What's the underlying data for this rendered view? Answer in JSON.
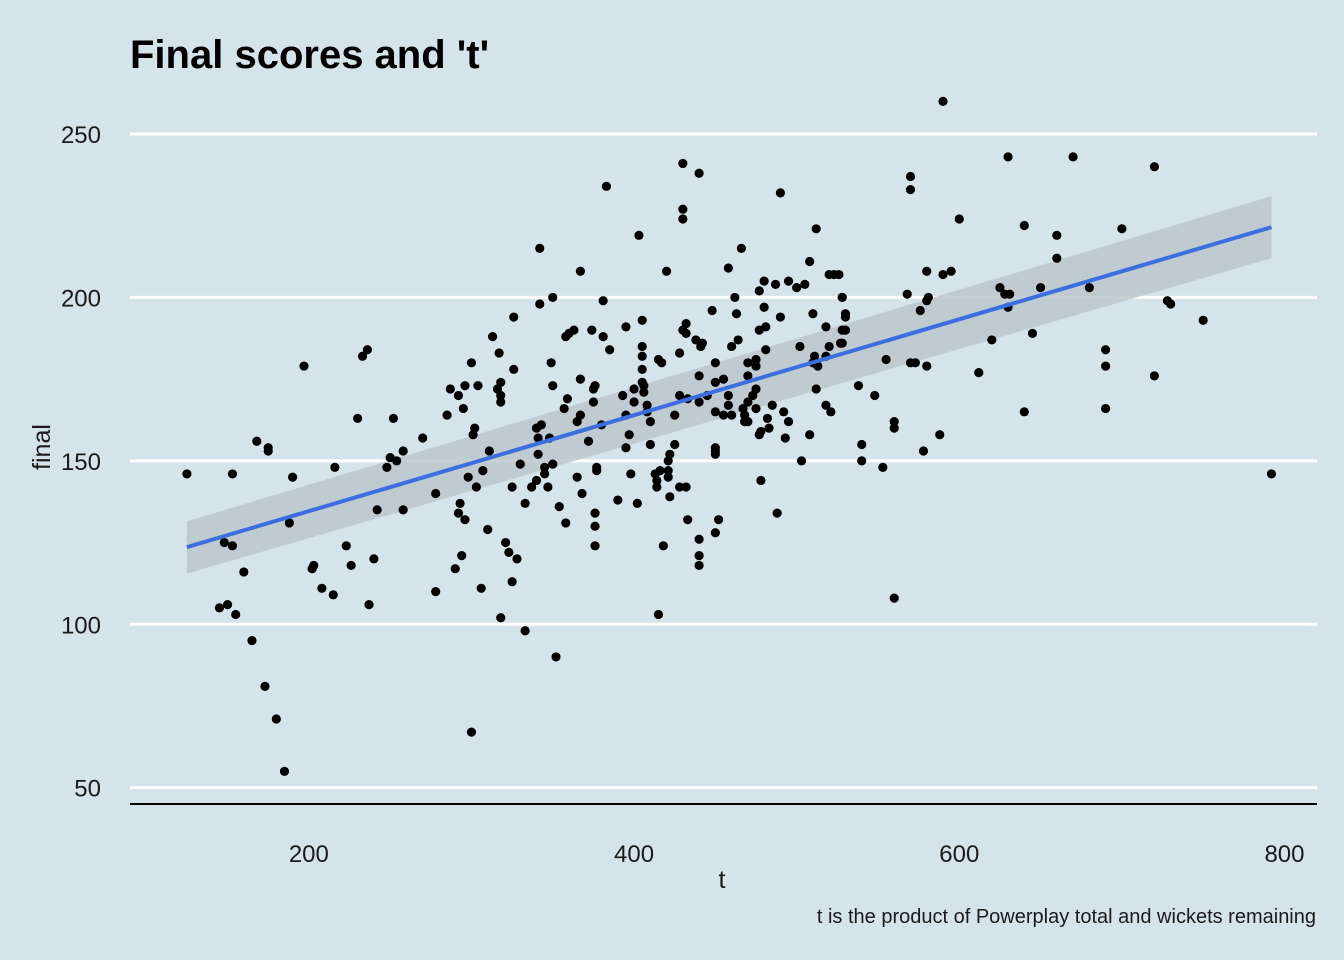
{
  "chart_data": {
    "type": "scatter",
    "title": "Final scores and 't'",
    "xlabel": "t",
    "ylabel": "final",
    "caption": "t is the product of Powerplay total and wickets remaining",
    "xlim": [
      90,
      820
    ],
    "ylim": [
      45,
      265
    ],
    "xticks": [
      200,
      400,
      600,
      800
    ],
    "xtick_labels": [
      "200",
      "400",
      "600",
      "800"
    ],
    "yticks": [
      50,
      100,
      150,
      200,
      250
    ],
    "ytick_labels": [
      "50",
      "100",
      "150",
      "200",
      "250"
    ],
    "grid": "horizontal major lines only",
    "trend": {
      "method": "linear fit with confidence band",
      "x": [
        125,
        792
      ],
      "y": [
        123.6,
        221.5
      ],
      "band_lower": [
        115.5,
        212
      ],
      "band_upper": [
        131.5,
        231
      ],
      "line_color": "#3b6fe0",
      "band_color": "#bcc7cc"
    },
    "point_color": "#000000",
    "points": [
      [
        125,
        146
      ],
      [
        145,
        105
      ],
      [
        148,
        125
      ],
      [
        150,
        106
      ],
      [
        153,
        146
      ],
      [
        153,
        124
      ],
      [
        155,
        103
      ],
      [
        160,
        116
      ],
      [
        165,
        95
      ],
      [
        168,
        156
      ],
      [
        173,
        81
      ],
      [
        175,
        153
      ],
      [
        175,
        154
      ],
      [
        180,
        71
      ],
      [
        185,
        55
      ],
      [
        188,
        131
      ],
      [
        190,
        145
      ],
      [
        197,
        179
      ],
      [
        202,
        117
      ],
      [
        203,
        118
      ],
      [
        208,
        111
      ],
      [
        215,
        109
      ],
      [
        216,
        148
      ],
      [
        223,
        124
      ],
      [
        226,
        118
      ],
      [
        230,
        163
      ],
      [
        233,
        182
      ],
      [
        236,
        184
      ],
      [
        237,
        106
      ],
      [
        240,
        120
      ],
      [
        242,
        135
      ],
      [
        248,
        148
      ],
      [
        250,
        151
      ],
      [
        252,
        163
      ],
      [
        254,
        150
      ],
      [
        258,
        153
      ],
      [
        258,
        135
      ],
      [
        270,
        157
      ],
      [
        278,
        110
      ],
      [
        278,
        140
      ],
      [
        285,
        164
      ],
      [
        287,
        172
      ],
      [
        290,
        117
      ],
      [
        292,
        134
      ],
      [
        292,
        170
      ],
      [
        293,
        137
      ],
      [
        294,
        121
      ],
      [
        295,
        166
      ],
      [
        296,
        173
      ],
      [
        296,
        132
      ],
      [
        298,
        145
      ],
      [
        300,
        180
      ],
      [
        300,
        67
      ],
      [
        301,
        158
      ],
      [
        302,
        160
      ],
      [
        303,
        142
      ],
      [
        304,
        173
      ],
      [
        306,
        111
      ],
      [
        307,
        147
      ],
      [
        310,
        129
      ],
      [
        311,
        153
      ],
      [
        313,
        188
      ],
      [
        316,
        172
      ],
      [
        317,
        183
      ],
      [
        318,
        102
      ],
      [
        318,
        170
      ],
      [
        318,
        174
      ],
      [
        318,
        168
      ],
      [
        321,
        125
      ],
      [
        323,
        122
      ],
      [
        325,
        113
      ],
      [
        325,
        142
      ],
      [
        326,
        194
      ],
      [
        326,
        178
      ],
      [
        328,
        120
      ],
      [
        330,
        149
      ],
      [
        333,
        98
      ],
      [
        333,
        137
      ],
      [
        337,
        142
      ],
      [
        340,
        144
      ],
      [
        340,
        160
      ],
      [
        341,
        157
      ],
      [
        341,
        152
      ],
      [
        342,
        198
      ],
      [
        342,
        215
      ],
      [
        343,
        161
      ],
      [
        345,
        146
      ],
      [
        345,
        148
      ],
      [
        347,
        142
      ],
      [
        348,
        157
      ],
      [
        349,
        180
      ],
      [
        350,
        173
      ],
      [
        350,
        149
      ],
      [
        350,
        200
      ],
      [
        352,
        90
      ],
      [
        354,
        136
      ],
      [
        357,
        166
      ],
      [
        358,
        188
      ],
      [
        358,
        131
      ],
      [
        359,
        169
      ],
      [
        360,
        189
      ],
      [
        363,
        190
      ],
      [
        365,
        162
      ],
      [
        365,
        145
      ],
      [
        367,
        175
      ],
      [
        367,
        208
      ],
      [
        367,
        164
      ],
      [
        368,
        140
      ],
      [
        372,
        156
      ],
      [
        374,
        190
      ],
      [
        375,
        172
      ],
      [
        375,
        168
      ],
      [
        376,
        173
      ],
      [
        376,
        124
      ],
      [
        376,
        134
      ],
      [
        376,
        130
      ],
      [
        377,
        148
      ],
      [
        377,
        147
      ],
      [
        380,
        161
      ],
      [
        381,
        188
      ],
      [
        381,
        199
      ],
      [
        383,
        234
      ],
      [
        385,
        184
      ],
      [
        390,
        138
      ],
      [
        393,
        170
      ],
      [
        395,
        164
      ],
      [
        395,
        191
      ],
      [
        395,
        154
      ],
      [
        397,
        158
      ],
      [
        398,
        146
      ],
      [
        400,
        168
      ],
      [
        400,
        172
      ],
      [
        402,
        137
      ],
      [
        403,
        219
      ],
      [
        405,
        185
      ],
      [
        405,
        193
      ],
      [
        405,
        178
      ],
      [
        405,
        174
      ],
      [
        405,
        182
      ],
      [
        406,
        173
      ],
      [
        406,
        171
      ],
      [
        408,
        165
      ],
      [
        408,
        167
      ],
      [
        410,
        162
      ],
      [
        410,
        155
      ],
      [
        413,
        146
      ],
      [
        414,
        142
      ],
      [
        414,
        144
      ],
      [
        415,
        181
      ],
      [
        415,
        103
      ],
      [
        416,
        147
      ],
      [
        417,
        180
      ],
      [
        418,
        124
      ],
      [
        420,
        208
      ],
      [
        421,
        147
      ],
      [
        421,
        145
      ],
      [
        421,
        150
      ],
      [
        422,
        139
      ],
      [
        422,
        152
      ],
      [
        425,
        155
      ],
      [
        425,
        164
      ],
      [
        428,
        142
      ],
      [
        428,
        170
      ],
      [
        428,
        183
      ],
      [
        430,
        241
      ],
      [
        430,
        224
      ],
      [
        430,
        227
      ],
      [
        430,
        190
      ],
      [
        432,
        189
      ],
      [
        432,
        192
      ],
      [
        432,
        142
      ],
      [
        433,
        169
      ],
      [
        433,
        132
      ],
      [
        438,
        187
      ],
      [
        440,
        176
      ],
      [
        440,
        168
      ],
      [
        440,
        126
      ],
      [
        440,
        238
      ],
      [
        440,
        121
      ],
      [
        440,
        118
      ],
      [
        441,
        185
      ],
      [
        442,
        186
      ],
      [
        445,
        170
      ],
      [
        448,
        196
      ],
      [
        450,
        174
      ],
      [
        450,
        152
      ],
      [
        450,
        153
      ],
      [
        450,
        154
      ],
      [
        450,
        165
      ],
      [
        450,
        128
      ],
      [
        450,
        180
      ],
      [
        452,
        132
      ],
      [
        455,
        164
      ],
      [
        455,
        175
      ],
      [
        458,
        209
      ],
      [
        458,
        167
      ],
      [
        458,
        170
      ],
      [
        460,
        185
      ],
      [
        460,
        164
      ],
      [
        462,
        200
      ],
      [
        463,
        195
      ],
      [
        464,
        187
      ],
      [
        466,
        215
      ],
      [
        467,
        166
      ],
      [
        468,
        162
      ],
      [
        468,
        164
      ],
      [
        470,
        180
      ],
      [
        470,
        176
      ],
      [
        470,
        168
      ],
      [
        470,
        162
      ],
      [
        473,
        170
      ],
      [
        475,
        181
      ],
      [
        475,
        166
      ],
      [
        475,
        179
      ],
      [
        475,
        172
      ],
      [
        477,
        190
      ],
      [
        477,
        202
      ],
      [
        477,
        158
      ],
      [
        478,
        144
      ],
      [
        478,
        159
      ],
      [
        480,
        205
      ],
      [
        480,
        197
      ],
      [
        481,
        191
      ],
      [
        481,
        184
      ],
      [
        482,
        163
      ],
      [
        483,
        160
      ],
      [
        485,
        167
      ],
      [
        487,
        204
      ],
      [
        488,
        134
      ],
      [
        490,
        232
      ],
      [
        490,
        194
      ],
      [
        492,
        165
      ],
      [
        493,
        157
      ],
      [
        495,
        162
      ],
      [
        495,
        205
      ],
      [
        500,
        203
      ],
      [
        502,
        185
      ],
      [
        503,
        150
      ],
      [
        505,
        204
      ],
      [
        508,
        158
      ],
      [
        508,
        211
      ],
      [
        510,
        180
      ],
      [
        510,
        195
      ],
      [
        511,
        182
      ],
      [
        512,
        172
      ],
      [
        512,
        221
      ],
      [
        513,
        179
      ],
      [
        518,
        182
      ],
      [
        518,
        167
      ],
      [
        518,
        191
      ],
      [
        520,
        185
      ],
      [
        520,
        207
      ],
      [
        521,
        165
      ],
      [
        523,
        207
      ],
      [
        526,
        207
      ],
      [
        527,
        186
      ],
      [
        528,
        200
      ],
      [
        528,
        186
      ],
      [
        528,
        200
      ],
      [
        528,
        190
      ],
      [
        530,
        195
      ],
      [
        530,
        190
      ],
      [
        530,
        194
      ],
      [
        538,
        173
      ],
      [
        540,
        155
      ],
      [
        540,
        150
      ],
      [
        548,
        170
      ],
      [
        553,
        148
      ],
      [
        555,
        181
      ],
      [
        560,
        108
      ],
      [
        560,
        162
      ],
      [
        560,
        160
      ],
      [
        568,
        201
      ],
      [
        570,
        237
      ],
      [
        570,
        233
      ],
      [
        570,
        180
      ],
      [
        573,
        180
      ],
      [
        576,
        196
      ],
      [
        578,
        153
      ],
      [
        580,
        179
      ],
      [
        580,
        199
      ],
      [
        580,
        208
      ],
      [
        581,
        200
      ],
      [
        588,
        158
      ],
      [
        590,
        260
      ],
      [
        590,
        207
      ],
      [
        595,
        208
      ],
      [
        600,
        224
      ],
      [
        612,
        177
      ],
      [
        620,
        187
      ],
      [
        625,
        203
      ],
      [
        628,
        201
      ],
      [
        630,
        197
      ],
      [
        630,
        243
      ],
      [
        631,
        201
      ],
      [
        640,
        222
      ],
      [
        640,
        165
      ],
      [
        645,
        189
      ],
      [
        650,
        203
      ],
      [
        660,
        219
      ],
      [
        660,
        212
      ],
      [
        670,
        243
      ],
      [
        680,
        203
      ],
      [
        690,
        184
      ],
      [
        690,
        179
      ],
      [
        690,
        166
      ],
      [
        700,
        221
      ],
      [
        720,
        240
      ],
      [
        720,
        176
      ],
      [
        728,
        199
      ],
      [
        730,
        198
      ],
      [
        750,
        193
      ],
      [
        792,
        146
      ]
    ]
  }
}
